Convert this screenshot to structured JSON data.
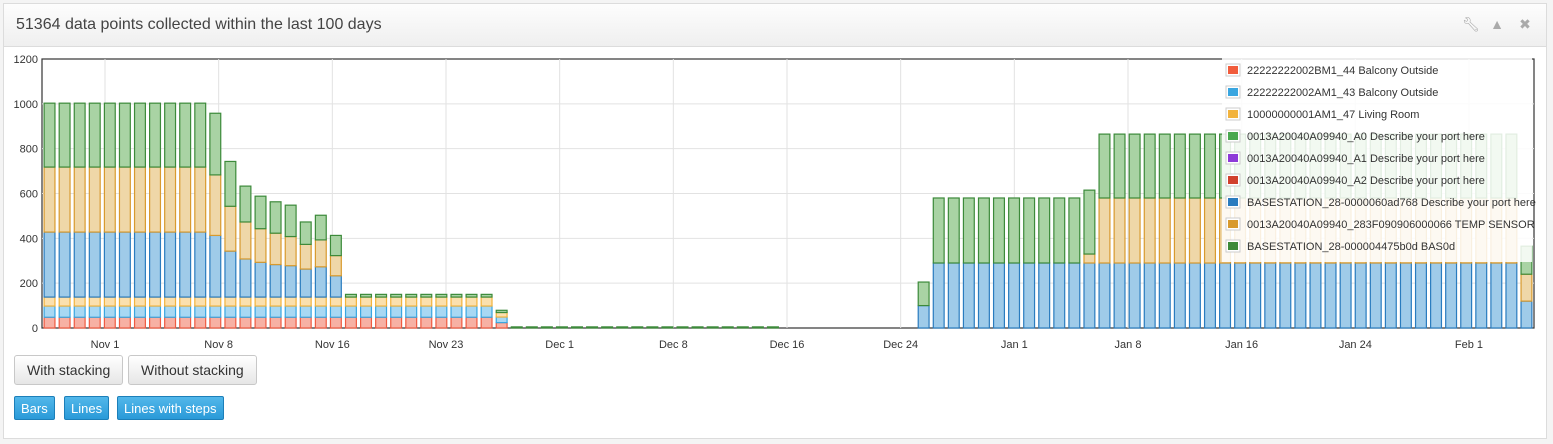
{
  "header": {
    "title": "51364 data points collected within the last 100 days",
    "icons": [
      "wrench-icon",
      "chevron-up-icon",
      "close-icon"
    ]
  },
  "buttons": {
    "with_stacking": "With stacking",
    "without_stacking": "Without stacking",
    "bars": "Bars",
    "lines": "Lines",
    "lines_with_steps": "Lines with steps"
  },
  "chart_data": {
    "type": "bar",
    "stacked": true,
    "grid": true,
    "legend_position": "top-right",
    "ylim": [
      0,
      1200
    ],
    "yticks": [
      0,
      200,
      400,
      600,
      800,
      1000,
      1200
    ],
    "xtick_labels": [
      "Nov 1",
      "Nov 8",
      "Nov 16",
      "Nov 23",
      "Dec 1",
      "Dec 8",
      "Dec 16",
      "Dec 24",
      "Jan 1",
      "Jan 8",
      "Jan 16",
      "Jan 24",
      "Feb 1"
    ],
    "series": [
      {
        "name": "22222222002BM1_44 Balcony Outside",
        "color": "#f15c3c"
      },
      {
        "name": "22222222002AM1_43 Balcony Outside",
        "color": "#3aa6e0"
      },
      {
        "name": "10000000001AM1_47 Living Room",
        "color": "#f2b33d"
      },
      {
        "name": "0013A20040A09940_A0 Describe your port here",
        "color": "#4aa84f"
      },
      {
        "name": "0013A20040A09940_A1 Describe your port here",
        "color": "#8e3ad8"
      },
      {
        "name": "0013A20040A09940_A2 Describe your port here",
        "color": "#d1402c"
      },
      {
        "name": "BASESTATION_28-0000060ad768 Describe your port here",
        "color": "#2a7cbf"
      },
      {
        "name": "0013A20040A09940_283F090906000066 TEMP SENSOR",
        "color": "#d89a2e"
      },
      {
        "name": "BASESTATION_28-000004475b0d BAS0d",
        "color": "#3c8a3a"
      }
    ],
    "groups": [
      {
        "count": 11,
        "red": 48,
        "blue": 50,
        "orange": 40,
        "blue2": 290,
        "tan": 290,
        "green": 285
      },
      {
        "count": 1,
        "red": 48,
        "blue": 50,
        "orange": 40,
        "blue2": 275,
        "tan": 270,
        "green": 275
      },
      {
        "count": 1,
        "red": 48,
        "blue": 50,
        "orange": 40,
        "blue2": 205,
        "tan": 200,
        "green": 200
      },
      {
        "count": 1,
        "red": 48,
        "blue": 50,
        "orange": 40,
        "blue2": 170,
        "tan": 165,
        "green": 160
      },
      {
        "count": 1,
        "red": 48,
        "blue": 50,
        "orange": 40,
        "blue2": 155,
        "tan": 150,
        "green": 145
      },
      {
        "count": 1,
        "red": 48,
        "blue": 50,
        "orange": 40,
        "blue2": 145,
        "tan": 140,
        "green": 140
      },
      {
        "count": 1,
        "red": 48,
        "blue": 50,
        "orange": 40,
        "blue2": 140,
        "tan": 130,
        "green": 140
      },
      {
        "count": 1,
        "red": 48,
        "blue": 50,
        "orange": 40,
        "blue2": 125,
        "tan": 110,
        "green": 100
      },
      {
        "count": 1,
        "red": 48,
        "blue": 50,
        "orange": 40,
        "blue2": 135,
        "tan": 120,
        "green": 110
      },
      {
        "count": 1,
        "red": 48,
        "blue": 50,
        "orange": 40,
        "blue2": 95,
        "tan": 90,
        "green": 90
      },
      {
        "count": 10,
        "red": 48,
        "blue": 50,
        "orange": 40,
        "blue2": 0,
        "tan": 0,
        "green": 12
      },
      {
        "count": 1,
        "red": 24,
        "blue": 25,
        "orange": 20,
        "blue2": 0,
        "tan": 0,
        "green": 10
      },
      {
        "count": 18,
        "red": 0,
        "blue": 0,
        "orange": 0,
        "blue2": 0,
        "tan": 0,
        "green": 5
      },
      {
        "count": 9,
        "red": 0,
        "blue": 0,
        "orange": 0,
        "blue2": 0,
        "tan": 0,
        "green": 0
      },
      {
        "count": 1,
        "red": 0,
        "blue": 0,
        "orange": 0,
        "blue2": 100,
        "tan": 0,
        "green": 105
      },
      {
        "count": 10,
        "red": 0,
        "blue": 0,
        "orange": 0,
        "blue2": 290,
        "tan": 0,
        "green": 290
      },
      {
        "count": 1,
        "red": 0,
        "blue": 0,
        "orange": 0,
        "blue2": 290,
        "tan": 40,
        "green": 285
      },
      {
        "count": 28,
        "red": 0,
        "blue": 0,
        "orange": 0,
        "blue2": 290,
        "tan": 290,
        "green": 285
      },
      {
        "count": 1,
        "red": 0,
        "blue": 0,
        "orange": 0,
        "blue2": 120,
        "tan": 120,
        "green": 125
      }
    ]
  }
}
